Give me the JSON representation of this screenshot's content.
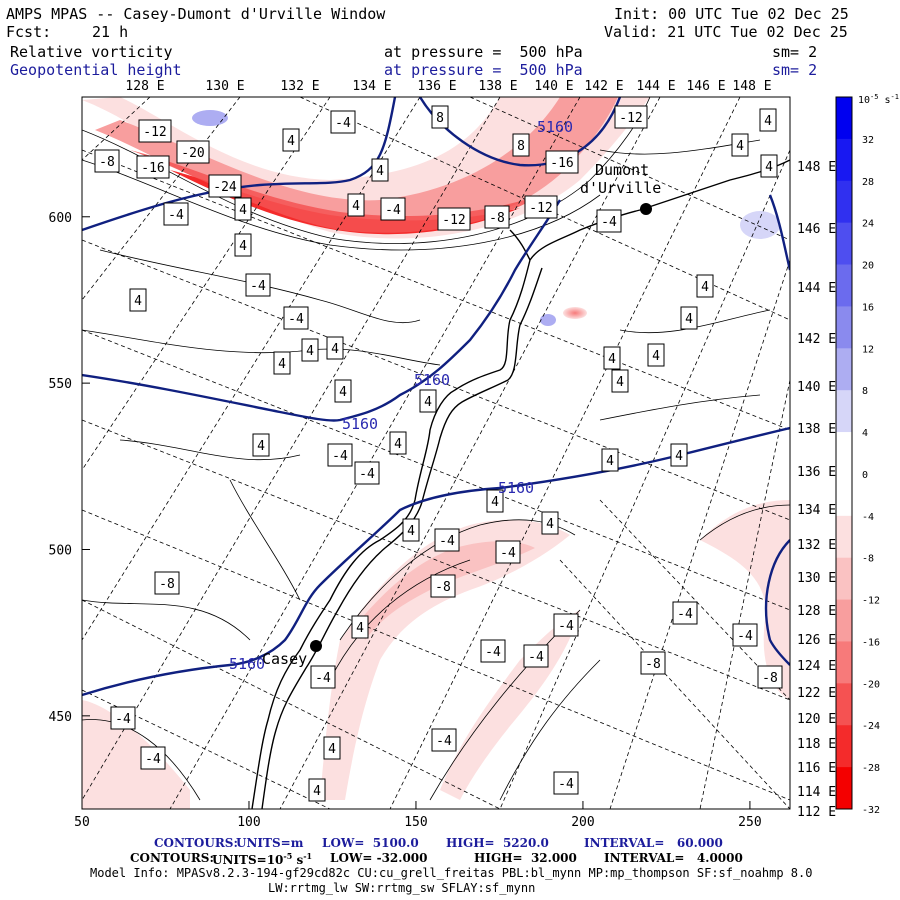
{
  "header": {
    "title": "AMPS MPAS -- Casey-Dumont d'Urville Window",
    "fcst_label": "Fcst:",
    "fcst_value": "21 h",
    "init": "Init: 00 UTC Tue 02 Dec 25",
    "valid": "Valid: 21 UTC Tue 02 Dec 25",
    "field1": {
      "name": "Relative vorticity",
      "pressure": "at pressure =  500 hPa",
      "sm": "sm= 2"
    },
    "field2": {
      "name": "Geopotential height",
      "pressure": "at pressure =  500 hPa",
      "sm": "sm= 2"
    }
  },
  "chart_data": {
    "type": "heatmap",
    "title": "Relative vorticity and Geopotential height at 500 hPa",
    "x_ticks": [
      "50",
      "100",
      "150",
      "200",
      "250"
    ],
    "x_range": [
      50,
      262
    ],
    "y_ticks": [
      "450",
      "500",
      "550",
      "600"
    ],
    "y_range": [
      422,
      636
    ],
    "top_lon_labels": [
      "128 E",
      "130 E",
      "132 E",
      "134 E",
      "136 E",
      "138 E",
      "140 E",
      "142 E",
      "144 E",
      "146 E",
      "148 E"
    ],
    "right_lat_labels": [
      "148 E",
      "146 E",
      "144 E",
      "142 E",
      "140 E",
      "138 E",
      "136 E",
      "134 E",
      "132 E",
      "130 E",
      "128 E",
      "126 E",
      "124 E",
      "122 E",
      "120 E",
      "118 E",
      "116 E",
      "114 E",
      "112 E"
    ],
    "colorbar": {
      "unit": "10",
      "unit_exp": "-5",
      "unit_rest": " s",
      "unit_inv": "-1",
      "levels": [
        "32",
        "28",
        "24",
        "20",
        "16",
        "12",
        "8",
        "4",
        "0",
        "-4",
        "-8",
        "-12",
        "-16",
        "-20",
        "-24",
        "-28",
        "-32"
      ],
      "colors": [
        "#0000f0",
        "#1818f2",
        "#3030f0",
        "#4e4ef0",
        "#6b6bee",
        "#8a8aee",
        "#adadf2",
        "#d6d6f8",
        "#ffffff",
        "#ffffff",
        "#fce0e0",
        "#fac2c2",
        "#f89e9e",
        "#f77a7a",
        "#f55252",
        "#f42b2b",
        "#f40000"
      ]
    },
    "height_labels": [
      "5160",
      "5160",
      "5160",
      "5160",
      "5160"
    ],
    "vort_labels": [
      "-12",
      "-8",
      "-16",
      "-20",
      "-24",
      "-4",
      "4",
      "4",
      "4",
      "-4",
      "4",
      "8",
      "8",
      "-12",
      "-16",
      "-12",
      "-8",
      "-12",
      "4",
      "-4",
      "4",
      "4",
      "4",
      "-4",
      "-4",
      "4",
      "4",
      "4",
      "4",
      "4",
      "4",
      "4",
      "4",
      "4",
      "4",
      "-4",
      "4",
      "4",
      "4",
      "-4",
      "-4",
      "4",
      "4",
      "4",
      "4",
      "4",
      "-4",
      "-4",
      "-8",
      "4",
      "-8",
      "-4",
      "-4",
      "-4",
      "-4",
      "-4",
      "-8",
      "-8",
      "-4",
      "-4",
      "-4",
      "4",
      "4",
      "-4",
      "-4",
      "-4",
      "-4",
      "-4",
      "-4"
    ],
    "stations": [
      {
        "name": "Dumont d'Urville",
        "line1": "Dumont",
        "line2": "d'Urville"
      },
      {
        "name": "Casey",
        "line1": "Casey",
        "line2": ""
      }
    ]
  },
  "footer": {
    "contours_height": {
      "label": "CONTOURS:",
      "units": "UNITS=m",
      "low": "LOW=  5100.0",
      "high": "HIGH=  5220.0",
      "interval": "INTERVAL=   60.000"
    },
    "contours_vort": {
      "label": "CONTOURS:",
      "units_a": "UNITS=10",
      "units_exp": "-5",
      "units_b": " s",
      "units_inv": "-1",
      "low": "LOW= -32.000",
      "high": "HIGH=  32.000",
      "interval": "INTERVAL=   4.0000"
    },
    "model_info": "Model Info: MPASv8.2.3-194-gf29cd82c CU:cu_grell_freitas PBL:bl_mynn MP:mp_thompson SF:sf_noahmp 8.0",
    "model_info2": "LW:rrtmg_lw SW:rrtmg_sw SFLAY:sf_mynn"
  }
}
